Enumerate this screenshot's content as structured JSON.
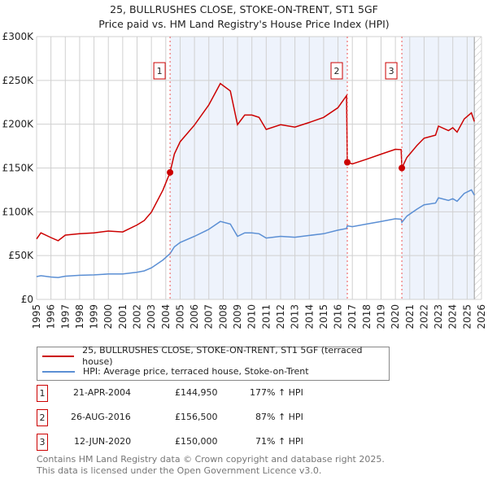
{
  "title": "25, BULLRUSHES CLOSE, STOKE-ON-TRENT, ST1 5GF",
  "subtitle": "Price paid vs. HM Land Registry's House Price Index (HPI)",
  "colors": {
    "property": "#cc0000",
    "hpi": "#5b8fd4",
    "shade": "#eef3fc"
  },
  "chart_data": {
    "type": "line",
    "xlim": [
      1995,
      2026
    ],
    "ylim": [
      0,
      300000
    ],
    "y_ticks": [
      0,
      50000,
      100000,
      150000,
      200000,
      250000,
      300000
    ],
    "y_tick_labels": [
      "£0",
      "£50K",
      "£100K",
      "£150K",
      "£200K",
      "£250K",
      "£300K"
    ],
    "x_ticks": [
      1995,
      1996,
      1997,
      1998,
      1999,
      2000,
      2001,
      2002,
      2003,
      2004,
      2005,
      2006,
      2007,
      2008,
      2009,
      2010,
      2011,
      2012,
      2013,
      2014,
      2015,
      2016,
      2017,
      2018,
      2019,
      2020,
      2021,
      2022,
      2023,
      2024,
      2025,
      2026
    ],
    "grid": true,
    "hatched_from": 2025.5,
    "shaded_ranges": [
      [
        2004.3,
        2016.65
      ],
      [
        2020.45,
        2025.5
      ]
    ],
    "series": [
      {
        "name": "25, BULLRUSHES CLOSE, STOKE-ON-TRENT, ST1 5GF (terraced house)",
        "x": [
          1995,
          1995.3,
          1996,
          1996.5,
          1997,
          1998,
          1999,
          2000,
          2001,
          2002,
          2002.5,
          2003,
          2003.8,
          2004.3,
          2004.6,
          2005,
          2006,
          2007,
          2007.8,
          2008.5,
          2009,
          2009.5,
          2010,
          2010.5,
          2011,
          2012,
          2013,
          2014,
          2015,
          2016,
          2016.6,
          2016.65,
          2017,
          2018,
          2019,
          2020,
          2020.4,
          2020.45,
          2020.8,
          2021.5,
          2022,
          2022.8,
          2023,
          2023.7,
          2024,
          2024.3,
          2024.8,
          2025.3,
          2025.5
        ],
        "y": [
          69000,
          76000,
          70600,
          67000,
          73400,
          75000,
          76000,
          78000,
          77000,
          85000,
          90000,
          99700,
          124700,
          144950,
          166000,
          180000,
          199000,
          222000,
          246500,
          238000,
          199500,
          210500,
          210500,
          207800,
          194000,
          199400,
          196700,
          202000,
          207800,
          218800,
          232700,
          156500,
          154600,
          160000,
          165800,
          171400,
          171000,
          150000,
          162000,
          175600,
          184000,
          187500,
          197800,
          192700,
          196000,
          191000,
          206000,
          213000,
          203000
        ]
      },
      {
        "name": "HPI: Average price, terraced house, Stoke-on-Trent",
        "x": [
          1995,
          1995.3,
          1996,
          1996.5,
          1997,
          1998,
          1999,
          2000,
          2001,
          2002,
          2002.5,
          2003,
          2003.8,
          2004.3,
          2004.6,
          2005,
          2006,
          2007,
          2007.8,
          2008.5,
          2009,
          2009.5,
          2010,
          2010.5,
          2011,
          2012,
          2013,
          2014,
          2015,
          2016,
          2016.6,
          2016.65,
          2017,
          2018,
          2019,
          2020,
          2020.4,
          2020.45,
          2020.8,
          2021.5,
          2022,
          2022.8,
          2023,
          2023.7,
          2024,
          2024.3,
          2024.8,
          2025.3,
          2025.5
        ],
        "y": [
          26000,
          27000,
          25500,
          25000,
          26500,
          27500,
          28000,
          29000,
          29000,
          31000,
          32500,
          36000,
          45000,
          52300,
          60000,
          65000,
          72000,
          80000,
          89000,
          86000,
          72000,
          76000,
          76000,
          75000,
          70000,
          72000,
          71000,
          73000,
          75000,
          79000,
          81000,
          84000,
          83000,
          86000,
          89000,
          92000,
          91500,
          88000,
          95000,
          103000,
          108000,
          110000,
          116000,
          113000,
          115000,
          112000,
          121000,
          125000,
          119000
        ]
      }
    ],
    "sales": [
      {
        "label": "1",
        "x": 2004.3,
        "y": 144950
      },
      {
        "label": "2",
        "x": 2016.65,
        "y": 156500
      },
      {
        "label": "3",
        "x": 2020.45,
        "y": 150000
      }
    ]
  },
  "legend": {
    "property": "25, BULLRUSHES CLOSE, STOKE-ON-TRENT, ST1 5GF (terraced house)",
    "hpi": "HPI: Average price, terraced house, Stoke-on-Trent"
  },
  "transactions": [
    {
      "num": "1",
      "date": "21-APR-2004",
      "price": "£144,950",
      "hpi": "177% ↑ HPI"
    },
    {
      "num": "2",
      "date": "26-AUG-2016",
      "price": "£156,500",
      "hpi": "87% ↑ HPI"
    },
    {
      "num": "3",
      "date": "12-JUN-2020",
      "price": "£150,000",
      "hpi": "71% ↑ HPI"
    }
  ],
  "footer": {
    "line1": "Contains HM Land Registry data © Crown copyright and database right 2025.",
    "line2": "This data is licensed under the Open Government Licence v3.0."
  }
}
